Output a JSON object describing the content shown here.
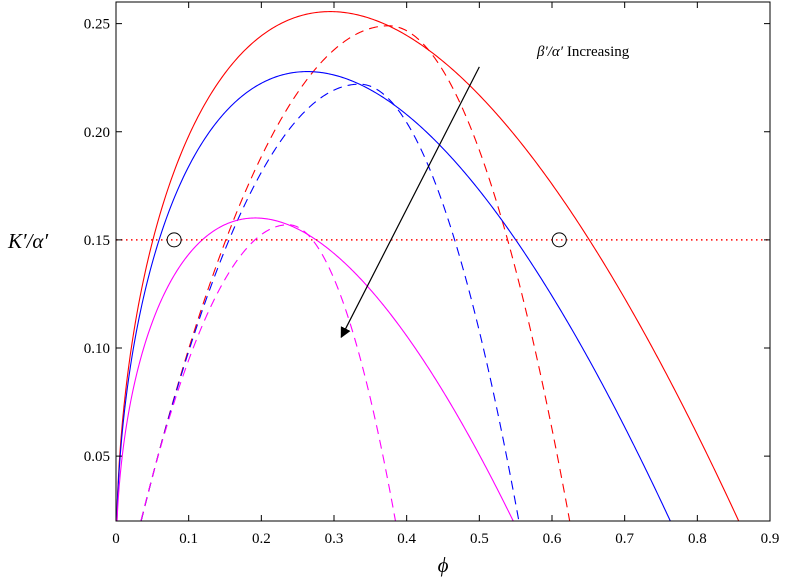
{
  "chart_data": {
    "type": "line",
    "title": "",
    "xlabel": "ϕ",
    "ylabel": "K′/α′",
    "xlim": [
      0,
      0.9
    ],
    "ylim": [
      0.02,
      0.26
    ],
    "xticks": [
      0,
      0.1,
      0.2,
      0.3,
      0.4,
      0.5,
      0.6,
      0.7,
      0.8,
      0.9
    ],
    "xtick_labels": [
      "0",
      "0.1",
      "0.2",
      "0.3",
      "0.4",
      "0.5",
      "0.6",
      "0.7",
      "0.8",
      "0.9"
    ],
    "yticks": [
      0.05,
      0.1,
      0.15,
      0.2,
      0.25
    ],
    "ytick_labels": [
      "0.05",
      "0.10",
      "0.15",
      "0.20",
      "0.25"
    ],
    "grid": false,
    "legend": "none",
    "series": [
      {
        "color": "#ff0000",
        "style": "solid",
        "kind": "sqrt-parabola",
        "root": 0.884,
        "peak_x": 0.375,
        "peak_y": 0.249
      },
      {
        "color": "#ff0000",
        "style": "dashed",
        "kind": "parabola",
        "root_left": 0.02,
        "root_right": 0.635,
        "peak_x": 0.375,
        "peak_y": 0.249
      },
      {
        "color": "#0000ff",
        "style": "solid",
        "kind": "sqrt-parabola",
        "root": 0.79,
        "peak_x": 0.335,
        "peak_y": 0.222
      },
      {
        "color": "#0000ff",
        "style": "dashed",
        "kind": "parabola",
        "root_left": 0.02,
        "root_right": 0.565,
        "peak_x": 0.335,
        "peak_y": 0.222
      },
      {
        "color": "#ff00ff",
        "style": "solid",
        "kind": "sqrt-parabola",
        "root": 0.575,
        "peak_x": 0.237,
        "peak_y": 0.157
      },
      {
        "color": "#ff00ff",
        "style": "dashed",
        "kind": "parabola",
        "root_left": 0.02,
        "root_right": 0.395,
        "peak_x": 0.237,
        "peak_y": 0.157
      }
    ],
    "reference_line": {
      "y": 0.15,
      "color": "#ff0000",
      "style": "dotted"
    },
    "markers": [
      {
        "x": 0.08,
        "y": 0.15,
        "shape": "open-circle"
      },
      {
        "x": 0.61,
        "y": 0.15,
        "shape": "open-circle"
      }
    ],
    "annotation": {
      "text_prefix": "β′/α′",
      "text_suffix": " Increasing",
      "arrow_from": [
        0.5,
        0.23
      ],
      "arrow_to": [
        0.31,
        0.105
      ]
    }
  }
}
